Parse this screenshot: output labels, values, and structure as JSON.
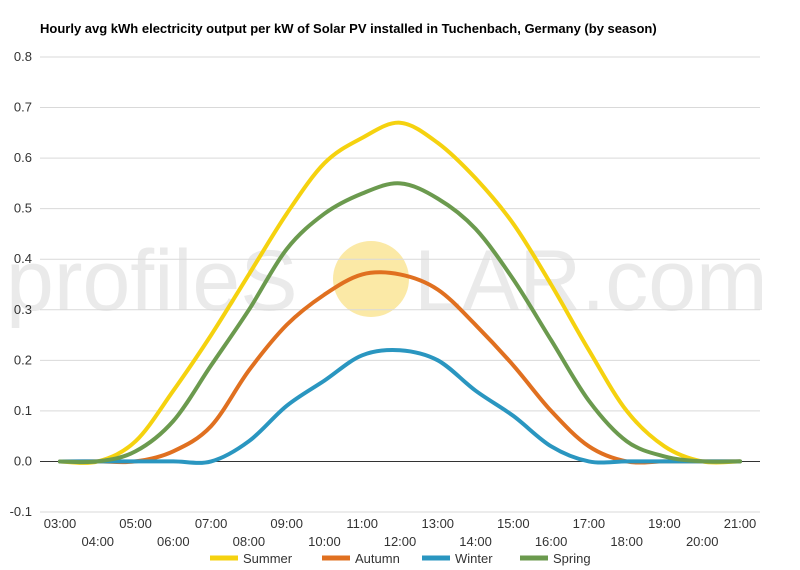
{
  "chart_data": {
    "type": "line",
    "title": "Hourly avg kWh electricity output per kW of Solar PV installed in Tuchenbach, Germany (by season)",
    "xlabel": "",
    "ylabel": "",
    "ylim": [
      -0.1,
      0.8
    ],
    "yticks": [
      "0.8",
      "0.7",
      "0.6",
      "0.5",
      "0.4",
      "0.3",
      "0.2",
      "0.1",
      "0.0",
      "-0.1"
    ],
    "x": [
      "03:00",
      "04:00",
      "05:00",
      "06:00",
      "07:00",
      "08:00",
      "09:00",
      "10:00",
      "11:00",
      "12:00",
      "13:00",
      "14:00",
      "15:00",
      "16:00",
      "17:00",
      "18:00",
      "19:00",
      "20:00",
      "21:00"
    ],
    "grid": "horizontal",
    "legend_position": "bottom",
    "series": [
      {
        "name": "Summer",
        "color": "#f5d20f",
        "values": [
          0.0,
          0.0,
          0.04,
          0.14,
          0.25,
          0.37,
          0.49,
          0.59,
          0.64,
          0.67,
          0.63,
          0.56,
          0.47,
          0.35,
          0.22,
          0.1,
          0.03,
          0.0,
          0.0
        ]
      },
      {
        "name": "Autumn",
        "color": "#e07020",
        "values": [
          0.0,
          0.0,
          0.0,
          0.02,
          0.07,
          0.18,
          0.27,
          0.33,
          0.37,
          0.37,
          0.34,
          0.27,
          0.19,
          0.1,
          0.03,
          0.0,
          0.0,
          0.0,
          0.0
        ]
      },
      {
        "name": "Winter",
        "color": "#2a96c0",
        "values": [
          0.0,
          0.0,
          0.0,
          0.0,
          0.0,
          0.04,
          0.11,
          0.16,
          0.21,
          0.22,
          0.2,
          0.14,
          0.09,
          0.03,
          0.0,
          0.0,
          0.0,
          0.0,
          0.0
        ]
      },
      {
        "name": "Spring",
        "color": "#6b9a4e",
        "values": [
          0.0,
          0.0,
          0.02,
          0.08,
          0.19,
          0.3,
          0.42,
          0.49,
          0.53,
          0.55,
          0.52,
          0.46,
          0.36,
          0.24,
          0.12,
          0.04,
          0.01,
          0.0,
          0.0
        ]
      }
    ]
  },
  "watermark": {
    "text_before": "profileS",
    "text_after": "LAR.com",
    "sun_color": "#fbe9a6"
  },
  "colors": {
    "grid": "#d9d9d9",
    "zero_line": "#333333",
    "background": "#ffffff"
  }
}
